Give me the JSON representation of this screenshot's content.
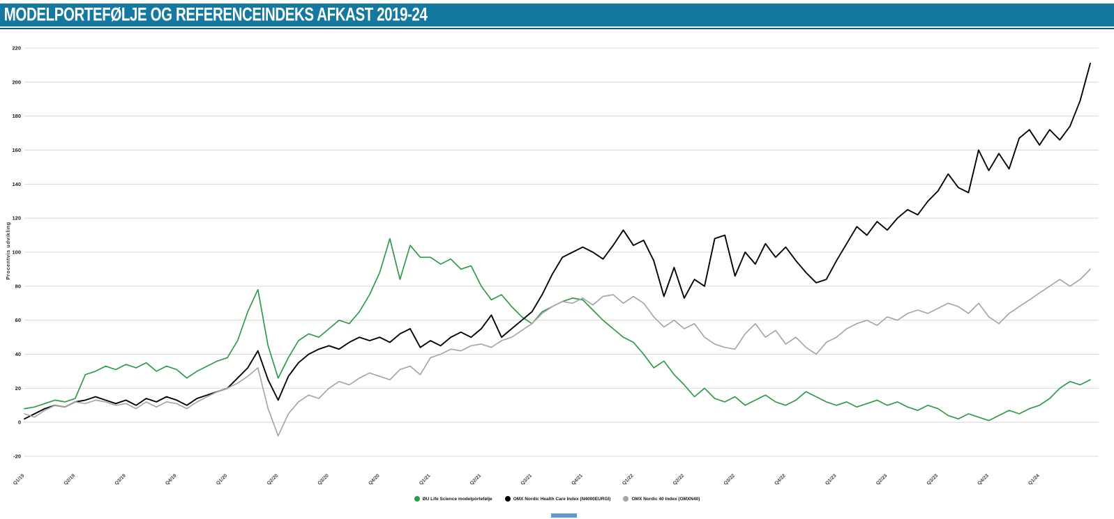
{
  "header": {
    "title": "MODELPORTEFØLJE OG REFERENCEINDEKS AFKAST 2019-24",
    "bar_color": "#1478A0",
    "rule_color": "#0D5F80"
  },
  "footer": {
    "accent_bar_color": "#5B9BD5"
  },
  "chart_data": {
    "type": "line",
    "title": "MODELPORTEFØLJE OG REFERENCEINDEKS AFKAST 2019-24",
    "xlabel": "",
    "ylabel": "Procentvis udvikling",
    "ylim": [
      -20,
      220
    ],
    "yticks": [
      -20,
      0,
      20,
      40,
      60,
      80,
      100,
      120,
      140,
      160,
      180,
      200,
      220
    ],
    "grid": true,
    "grid_color": "#D8D8D8",
    "tick_color": "#1A1A1A",
    "legend_position": "bottom",
    "categories": [
      "Q1/19",
      "Q2/19",
      "Q3/19",
      "Q4/19",
      "Q1/20",
      "Q2/20",
      "Q3/20",
      "Q4/20",
      "Q1/21",
      "Q2/21",
      "Q3/21",
      "Q4/21",
      "Q1/22",
      "Q2/22",
      "Q3/22",
      "Q4/22",
      "Q1/23",
      "Q2/23",
      "Q3/23",
      "Q4/23",
      "Q1/24"
    ],
    "points_per_category": 5,
    "series": [
      {
        "name": "ØU Life Science modelportefølje",
        "color": "#2D9B48",
        "values": [
          8,
          9,
          11,
          13,
          12,
          14,
          28,
          30,
          33,
          31,
          34,
          32,
          35,
          30,
          33,
          31,
          26,
          30,
          33,
          36,
          38,
          48,
          65,
          78,
          45,
          26,
          38,
          48,
          52,
          50,
          55,
          60,
          58,
          65,
          75,
          88,
          108,
          84,
          104,
          97,
          97,
          93,
          96,
          90,
          92,
          80,
          72,
          75,
          68,
          62,
          58,
          65,
          68,
          71,
          73,
          72,
          66,
          60,
          55,
          50,
          47,
          40,
          32,
          36,
          28,
          22,
          15,
          20,
          14,
          12,
          15,
          10,
          13,
          16,
          12,
          10,
          13,
          18,
          15,
          12,
          10,
          12,
          9,
          11,
          13,
          10,
          12,
          9,
          7,
          10,
          8,
          4,
          2,
          5,
          3,
          1,
          4,
          7,
          5,
          8,
          10,
          14,
          20,
          24,
          22,
          25
        ]
      },
      {
        "name": "OMX Nordic Health Care Index (N4000EURGI)",
        "color": "#000000",
        "values": [
          2,
          5,
          8,
          10,
          9,
          12,
          13,
          15,
          13,
          11,
          13,
          10,
          14,
          12,
          15,
          13,
          10,
          14,
          16,
          18,
          20,
          26,
          32,
          42,
          25,
          13,
          27,
          35,
          40,
          43,
          45,
          43,
          47,
          50,
          48,
          50,
          47,
          52,
          55,
          44,
          48,
          45,
          50,
          53,
          50,
          55,
          63,
          50,
          55,
          60,
          65,
          75,
          87,
          97,
          100,
          103,
          100,
          96,
          104,
          113,
          104,
          107,
          95,
          74,
          91,
          73,
          84,
          80,
          108,
          110,
          86,
          100,
          93,
          105,
          97,
          103,
          95,
          88,
          82,
          84,
          95,
          105,
          115,
          110,
          118,
          113,
          120,
          125,
          122,
          130,
          136,
          146,
          138,
          135,
          160,
          148,
          158,
          149,
          167,
          172,
          163,
          172,
          166,
          174,
          189,
          211
        ]
      },
      {
        "name": "OMX Nordic 40 Index (OMXN40)",
        "color": "#A6A6A6",
        "values": [
          5,
          3,
          7,
          10,
          9,
          12,
          11,
          13,
          12,
          10,
          11,
          8,
          12,
          9,
          12,
          11,
          8,
          12,
          15,
          18,
          20,
          23,
          27,
          32,
          8,
          -8,
          5,
          12,
          16,
          14,
          20,
          24,
          22,
          26,
          29,
          27,
          25,
          31,
          33,
          28,
          38,
          40,
          43,
          42,
          45,
          46,
          44,
          48,
          50,
          54,
          58,
          64,
          68,
          71,
          70,
          73,
          69,
          74,
          75,
          70,
          74,
          70,
          62,
          56,
          60,
          55,
          58,
          50,
          46,
          44,
          43,
          52,
          58,
          50,
          54,
          46,
          50,
          44,
          40,
          47,
          50,
          55,
          58,
          60,
          57,
          62,
          60,
          64,
          66,
          64,
          67,
          70,
          68,
          64,
          70,
          62,
          58,
          64,
          68,
          72,
          76,
          80,
          84,
          80,
          84,
          90
        ]
      }
    ]
  }
}
